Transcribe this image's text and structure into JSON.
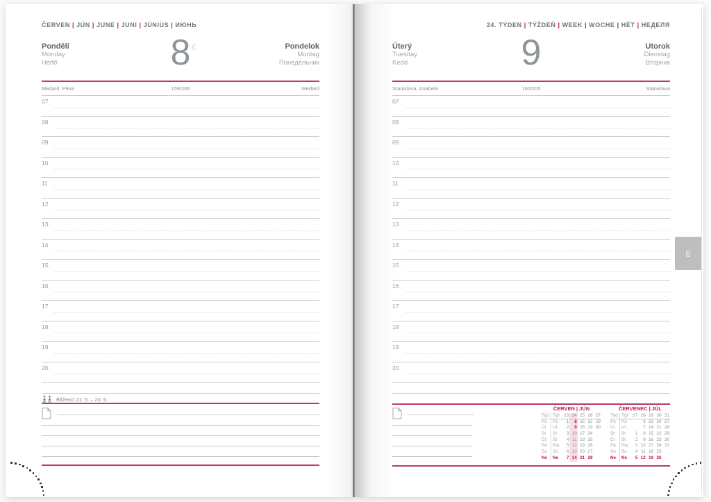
{
  "hours": [
    "07",
    "08",
    "09",
    "10",
    "11",
    "12",
    "13",
    "14",
    "15",
    "16",
    "17",
    "18",
    "19",
    "20"
  ],
  "month_tab": {
    "label": "6"
  },
  "icons": {
    "moon_phase": "moon-last-quarter",
    "zodiac": "gemini",
    "notes": "note-page"
  },
  "colors": {
    "accent_line_red": "#bb3a5e",
    "calendar_red": "#c2164a",
    "highlight_pink": "#f6dfe4",
    "text_gray": "#8d9296",
    "tab_gray": "#bdbebf"
  },
  "left_page": {
    "month_parts": [
      "ČERVEN",
      "JÚN",
      "JUNE",
      "JUNI",
      "JÚNIUS",
      "ИЮНЬ"
    ],
    "day": {
      "name_bold_left": "Pondělí",
      "names_left": [
        "Monday",
        "Hétfő"
      ],
      "number": "8",
      "moon_symbol": "☾",
      "name_bold_right": "Pondelok",
      "names_right": [
        "Montag",
        "Понедельник"
      ]
    },
    "nameday": {
      "left": "Medard, Pěva",
      "center": "159/206",
      "right": "Medard"
    },
    "zodiac_label": "Blíženci 21. 5. – 20. 6."
  },
  "right_page": {
    "week_parts": [
      "24. TÝDEN",
      "TÝŽDEŇ",
      "WEEK",
      "WOCHE",
      "HÉT",
      "НЕДЕЛЯ"
    ],
    "day": {
      "name_bold_left": "Úterý",
      "names_left": [
        "Tuesday",
        "Kedd"
      ],
      "number": "9",
      "name_bold_right": "Utorok",
      "names_right": [
        "Dienstag",
        "Вторник"
      ]
    },
    "nameday": {
      "left": "Stanislava, Anabela",
      "center": "160/205",
      "right": "Stanislava"
    },
    "mini_calendars": [
      {
        "title_parts": [
          "ČERVEN",
          "JÚN"
        ],
        "col_headers": [
          "Týd",
          "Týž"
        ],
        "week_numbers": [
          "23",
          "24",
          "25",
          "26",
          "27"
        ],
        "highlight_week": "24",
        "highlight_days": [
          "8",
          "9"
        ],
        "rows": [
          {
            "label_cz": "Po",
            "label_sk": "Po",
            "days": [
              "1",
              "8",
              "15",
              "22",
              "29"
            ],
            "sunday": false
          },
          {
            "label_cz": "Út",
            "label_sk": "Ut",
            "days": [
              "2",
              "9",
              "16",
              "23",
              "30"
            ],
            "sunday": false
          },
          {
            "label_cz": "St",
            "label_sk": "St",
            "days": [
              "3",
              "10",
              "17",
              "24",
              ""
            ],
            "sunday": false
          },
          {
            "label_cz": "Čt",
            "label_sk": "Št",
            "days": [
              "4",
              "11",
              "18",
              "25",
              ""
            ],
            "sunday": false
          },
          {
            "label_cz": "Pá",
            "label_sk": "Pia",
            "days": [
              "5",
              "12",
              "19",
              "26",
              ""
            ],
            "sunday": false
          },
          {
            "label_cz": "So",
            "label_sk": "So",
            "days": [
              "6",
              "13",
              "20",
              "27",
              ""
            ],
            "sunday": false
          },
          {
            "label_cz": "Ne",
            "label_sk": "Ne",
            "days": [
              "7",
              "14",
              "21",
              "28",
              ""
            ],
            "sunday": true
          }
        ]
      },
      {
        "title_parts": [
          "ČERVENEC",
          "JÚL"
        ],
        "col_headers": [
          "Týd",
          "Týž"
        ],
        "week_numbers": [
          "27",
          "28",
          "29",
          "30",
          "31"
        ],
        "highlight_week": "",
        "highlight_days": [],
        "rows": [
          {
            "label_cz": "Po",
            "label_sk": "Po",
            "days": [
              "",
              "6",
              "13",
              "20",
              "27"
            ],
            "sunday": false
          },
          {
            "label_cz": "Út",
            "label_sk": "Ut",
            "days": [
              "",
              "7",
              "14",
              "21",
              "28"
            ],
            "sunday": false
          },
          {
            "label_cz": "St",
            "label_sk": "St",
            "days": [
              "1",
              "8",
              "15",
              "22",
              "29"
            ],
            "sunday": false
          },
          {
            "label_cz": "Čt",
            "label_sk": "Št",
            "days": [
              "2",
              "9",
              "16",
              "23",
              "30"
            ],
            "sunday": false
          },
          {
            "label_cz": "Pá",
            "label_sk": "Pia",
            "days": [
              "3",
              "10",
              "17",
              "24",
              "31"
            ],
            "sunday": false
          },
          {
            "label_cz": "So",
            "label_sk": "So",
            "days": [
              "4",
              "11",
              "18",
              "25",
              ""
            ],
            "sunday": false
          },
          {
            "label_cz": "Ne",
            "label_sk": "Ne",
            "days": [
              "5",
              "12",
              "19",
              "26",
              ""
            ],
            "sunday": true
          }
        ]
      }
    ]
  }
}
